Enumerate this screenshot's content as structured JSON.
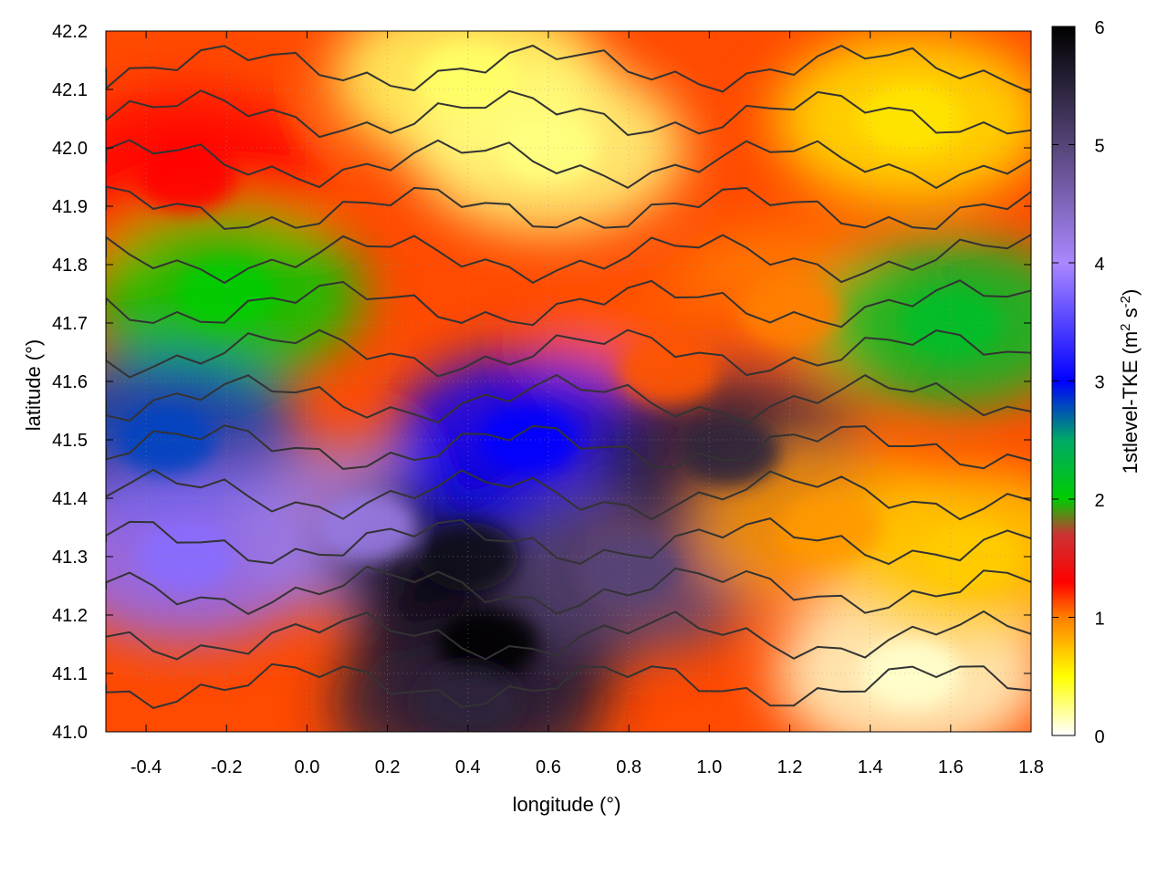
{
  "chart_data": {
    "type": "heatmap",
    "title": "",
    "xlabel": "longitude (°)",
    "ylabel": "latitude (°)",
    "xlim": [
      -0.5,
      1.8
    ],
    "ylim": [
      41.0,
      42.2
    ],
    "xticks": [
      -0.4,
      -0.2,
      0.0,
      0.2,
      0.4,
      0.6,
      0.8,
      1.0,
      1.2,
      1.4,
      1.6,
      1.8
    ],
    "xtick_labels": [
      "-0.4",
      "-0.2",
      "0.0",
      "0.2",
      "0.4",
      "0.6",
      "0.8",
      "1.0",
      "1.2",
      "1.4",
      "1.6",
      "1.8"
    ],
    "yticks": [
      41.0,
      41.1,
      41.2,
      41.3,
      41.4,
      41.5,
      41.6,
      41.7,
      41.8,
      41.9,
      42.0,
      42.1,
      42.2
    ],
    "ytick_labels": [
      "41.0",
      "41.1",
      "41.2",
      "41.3",
      "41.4",
      "41.5",
      "41.6",
      "41.7",
      "41.8",
      "41.9",
      "42.0",
      "42.1",
      "42.2"
    ],
    "grid": true,
    "colorbar": {
      "label_parts": [
        "1stlevel-TKE (m",
        "2",
        " s",
        "-2",
        ")"
      ],
      "range": [
        0,
        6
      ],
      "ticks": [
        0,
        1,
        2,
        3,
        4,
        5,
        6
      ],
      "tick_labels": [
        "0",
        "1",
        "2",
        "3",
        "4",
        "5",
        "6"
      ],
      "color_stops": [
        {
          "value": 0.0,
          "color": "#ffffff"
        },
        {
          "value": 0.5,
          "color": "#ffff00"
        },
        {
          "value": 1.0,
          "color": "#ff7f00"
        },
        {
          "value": 1.3,
          "color": "#ff0000"
        },
        {
          "value": 1.7,
          "color": "#cc3333"
        },
        {
          "value": 2.0,
          "color": "#00cc00"
        },
        {
          "value": 2.5,
          "color": "#00aa66"
        },
        {
          "value": 3.0,
          "color": "#0000ff"
        },
        {
          "value": 4.0,
          "color": "#aa88ff"
        },
        {
          "value": 5.0,
          "color": "#554477"
        },
        {
          "value": 6.0,
          "color": "#000000"
        }
      ]
    },
    "tke_regions": [
      {
        "lon": 0.4,
        "lat": 42.12,
        "tke": 0.3
      },
      {
        "lon": 0.6,
        "lat": 42.0,
        "tke": 0.25
      },
      {
        "lon": 1.5,
        "lat": 42.05,
        "tke": 0.6
      },
      {
        "lon": 1.2,
        "lat": 41.72,
        "tke": 1.0
      },
      {
        "lon": 0.9,
        "lat": 41.62,
        "tke": 1.1
      },
      {
        "lon": -0.3,
        "lat": 41.95,
        "tke": 1.3
      },
      {
        "lon": -0.2,
        "lat": 41.75,
        "tke": 2.0
      },
      {
        "lon": -0.35,
        "lat": 41.5,
        "tke": 2.8
      },
      {
        "lon": -0.3,
        "lat": 41.3,
        "tke": 3.8
      },
      {
        "lon": 0.15,
        "lat": 41.35,
        "tke": 4.2
      },
      {
        "lon": 0.4,
        "lat": 41.3,
        "tke": 5.8
      },
      {
        "lon": 0.45,
        "lat": 41.15,
        "tke": 6.0
      },
      {
        "lon": 0.4,
        "lat": 41.05,
        "tke": 5.5
      },
      {
        "lon": 0.55,
        "lat": 41.5,
        "tke": 3.0
      },
      {
        "lon": 0.8,
        "lat": 41.28,
        "tke": 5.0
      },
      {
        "lon": 1.05,
        "lat": 41.48,
        "tke": 5.5
      },
      {
        "lon": 1.3,
        "lat": 41.35,
        "tke": 0.9
      },
      {
        "lon": 1.5,
        "lat": 41.1,
        "tke": 0.1
      },
      {
        "lon": 1.65,
        "lat": 41.3,
        "tke": 0.7
      },
      {
        "lon": 1.6,
        "lat": 41.7,
        "tke": 2.2
      }
    ]
  }
}
